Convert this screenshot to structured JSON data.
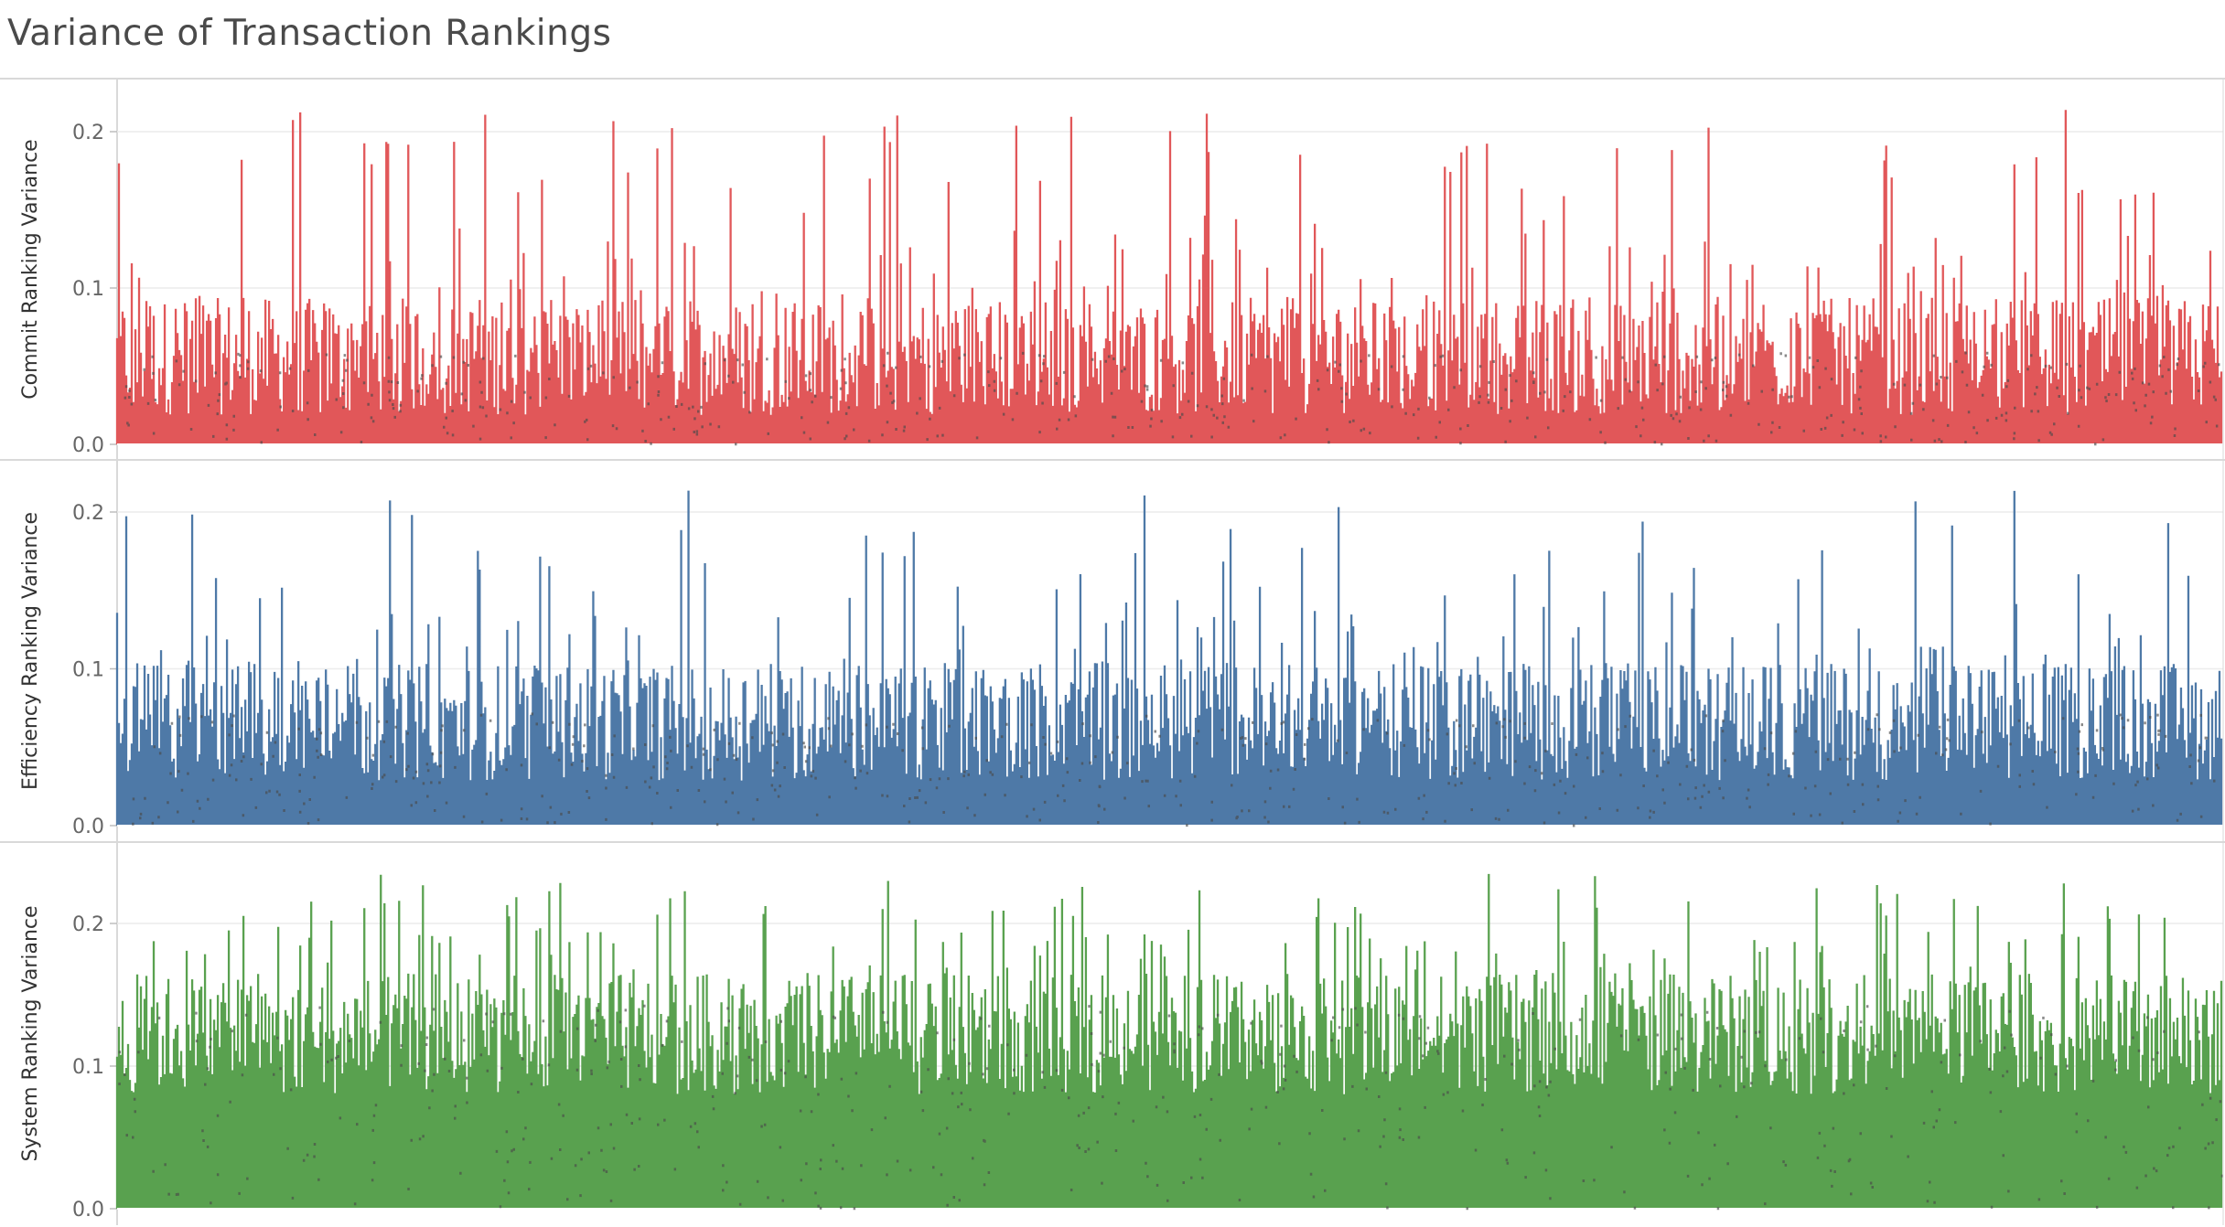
{
  "title": "Variance of Transaction Rankings",
  "chart_data": [
    {
      "type": "bar",
      "ylabel": "Commit Ranking Variance",
      "ticks": [
        "0.0",
        "0.1",
        "0.2"
      ],
      "ylim": [
        0,
        0.23
      ],
      "color": "#e15759",
      "base": 0.045,
      "peak": 0.215,
      "spread": 0.075,
      "grid": true
    },
    {
      "type": "bar",
      "ylabel": "Efficiency Ranking Variance",
      "ticks": [
        "0.0",
        "0.1",
        "0.2"
      ],
      "ylim": [
        0,
        0.23
      ],
      "color": "#4e79a7",
      "base": 0.055,
      "peak": 0.215,
      "spread": 0.075,
      "grid": true
    },
    {
      "type": "bar",
      "ylabel": "System Ranking Variance",
      "ticks": [
        "0.0",
        "0.1",
        "0.2"
      ],
      "ylim": [
        0,
        0.25
      ],
      "color": "#59a14f",
      "base": 0.11,
      "peak": 0.235,
      "spread": 0.085,
      "grid": true
    }
  ]
}
